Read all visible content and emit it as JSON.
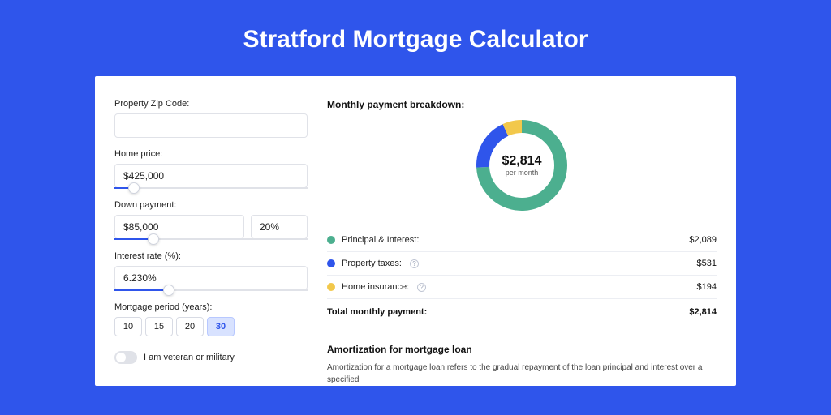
{
  "page_title": "Stratford Mortgage Calculator",
  "colors": {
    "background": "#2f55eb",
    "card_bg": "#ffffff",
    "input_border": "#e0e2e8",
    "slider_fill": "#2f55eb",
    "text": "#222222"
  },
  "form": {
    "zip_label": "Property Zip Code:",
    "zip_value": "",
    "home_price_label": "Home price:",
    "home_price_value": "$425,000",
    "home_price_slider_pct": 10,
    "down_payment_label": "Down payment:",
    "down_payment_value": "$85,000",
    "down_payment_pct": "20%",
    "down_payment_slider_pct": 20,
    "interest_label": "Interest rate (%):",
    "interest_value": "6.230%",
    "interest_slider_pct": 28,
    "period_label": "Mortgage period (years):",
    "period_options": [
      "10",
      "15",
      "20",
      "30"
    ],
    "period_selected": "30",
    "veteran_label": "I am veteran or military",
    "veteran_on": false
  },
  "breakdown": {
    "heading": "Monthly payment breakdown:",
    "donut": {
      "center_amount": "$2,814",
      "center_sub": "per month",
      "segments": [
        {
          "label": "Principal & Interest",
          "value": 2089,
          "color": "#4caf8f"
        },
        {
          "label": "Property taxes",
          "value": 531,
          "color": "#2f55eb"
        },
        {
          "label": "Home insurance",
          "value": 194,
          "color": "#f2c84b"
        }
      ],
      "stroke_width": 16
    },
    "items": [
      {
        "dot_color": "#4caf8f",
        "label": "Principal & Interest:",
        "value": "$2,089",
        "info": false
      },
      {
        "dot_color": "#2f55eb",
        "label": "Property taxes:",
        "value": "$531",
        "info": true
      },
      {
        "dot_color": "#f2c84b",
        "label": "Home insurance:",
        "value": "$194",
        "info": true
      }
    ],
    "total_label": "Total monthly payment:",
    "total_value": "$2,814"
  },
  "amortization": {
    "heading": "Amortization for mortgage loan",
    "text": "Amortization for a mortgage loan refers to the gradual repayment of the loan principal and interest over a specified"
  }
}
